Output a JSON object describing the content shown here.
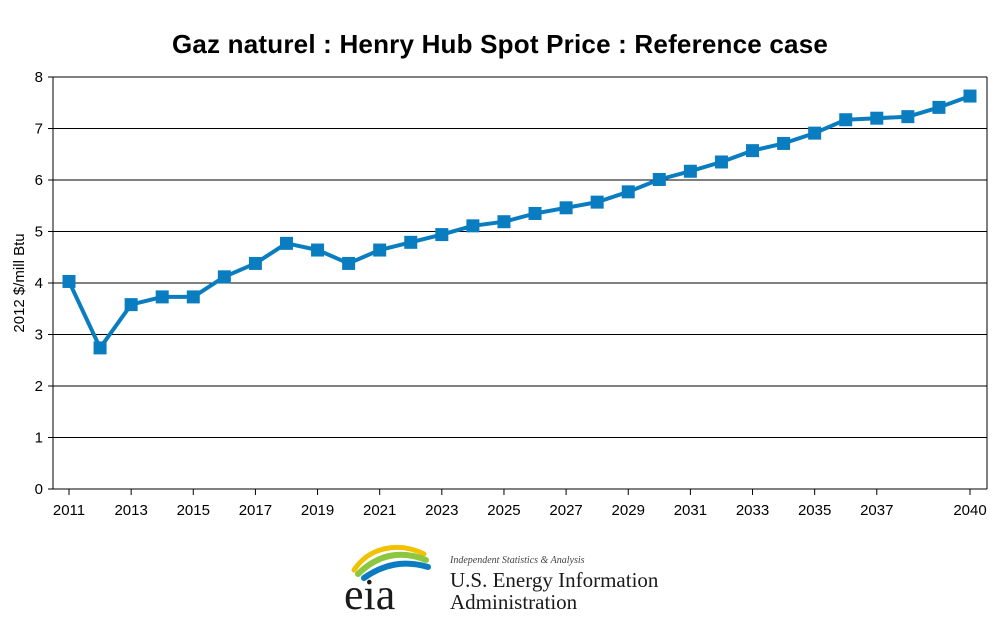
{
  "chart_data": {
    "type": "line",
    "title": "Gaz naturel : Henry Hub Spot Price : Reference case",
    "ylabel": "2012 $/mill Btu",
    "xlabel": "",
    "ylim": [
      0,
      8
    ],
    "yticks": [
      0,
      1,
      2,
      3,
      4,
      5,
      6,
      7,
      8
    ],
    "xlim": [
      2011,
      2040
    ],
    "xticks": [
      2011,
      2013,
      2015,
      2017,
      2019,
      2021,
      2023,
      2025,
      2027,
      2029,
      2031,
      2033,
      2035,
      2037,
      2040
    ],
    "grid": "horizontal",
    "legend": "none",
    "color": "#0a7dc1",
    "series": [
      {
        "x": [
          2011,
          2012,
          2013,
          2014,
          2015,
          2016,
          2017,
          2018,
          2019,
          2020,
          2021,
          2022,
          2023,
          2024,
          2025,
          2026,
          2027,
          2028,
          2029,
          2030,
          2031,
          2032,
          2033,
          2034,
          2035,
          2036,
          2037,
          2038,
          2039,
          2040
        ],
        "values": [
          4.03,
          2.74,
          3.58,
          3.73,
          3.73,
          4.12,
          4.38,
          4.77,
          4.64,
          4.38,
          4.64,
          4.79,
          4.94,
          5.11,
          5.19,
          5.35,
          5.46,
          5.57,
          5.77,
          6.01,
          6.17,
          6.35,
          6.57,
          6.71,
          6.91,
          7.17,
          7.2,
          7.23,
          7.41,
          7.63
        ]
      }
    ]
  },
  "logo": {
    "tagline": "Independent Statistics & Analysis",
    "name_line1": "U.S. Energy Information",
    "name_line2": "Administration",
    "mark_text": "eia"
  }
}
